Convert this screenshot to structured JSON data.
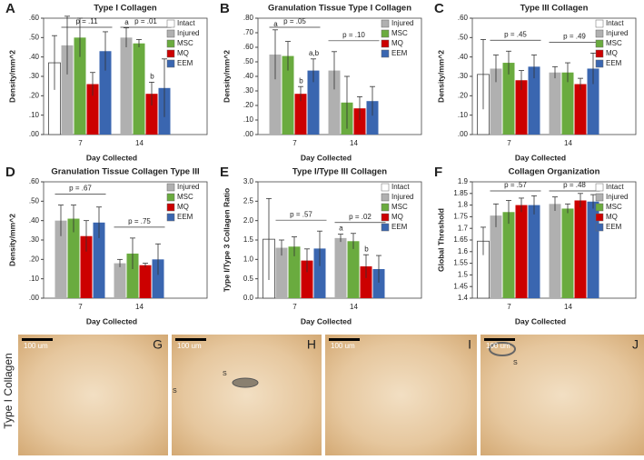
{
  "chart_data": [
    {
      "type": "bar",
      "panel": "A",
      "title": "Type I Collagen",
      "y_label": "Density/mm^2",
      "x_label": "Day Collected",
      "categories": [
        "7",
        "14"
      ],
      "pvalues": [
        "p = .11",
        "p = .01"
      ],
      "ylim": [
        0,
        0.6
      ],
      "yticks": [
        {
          "value": 0,
          "label": ".00"
        },
        {
          "value": 0.1,
          "label": ".10"
        },
        {
          "value": 0.2,
          "label": ".20"
        },
        {
          "value": 0.3,
          "label": ".30"
        },
        {
          "value": 0.4,
          "label": ".40"
        },
        {
          "value": 0.5,
          "label": ".50"
        },
        {
          "value": 0.6,
          "label": ".60"
        }
      ],
      "series": [
        {
          "name": "Intact",
          "color": "#ffffff",
          "values": [
            0.37,
            null
          ],
          "errors": [
            0.14,
            null
          ]
        },
        {
          "name": "Injured",
          "color": "#b0b0b0",
          "values": [
            0.46,
            0.5
          ],
          "errors": [
            0.15,
            0.05
          ],
          "letters": [
            null,
            "a"
          ]
        },
        {
          "name": "MSC",
          "color": "#6aab3f",
          "values": [
            0.5,
            0.47
          ],
          "errors": [
            0.1,
            0.02
          ]
        },
        {
          "name": "MQ",
          "color": "#cc0000",
          "values": [
            0.26,
            0.21
          ],
          "errors": [
            0.06,
            0.06
          ],
          "letters": [
            null,
            "b"
          ]
        },
        {
          "name": "EEM",
          "color": "#3a66b0",
          "values": [
            0.43,
            0.24
          ],
          "errors": [
            0.1,
            0.15
          ]
        }
      ]
    },
    {
      "type": "bar",
      "panel": "B",
      "title": "Granulation Tissue Type I Collagen",
      "y_label": "Density/mm^2",
      "x_label": "Day Collected",
      "categories": [
        "7",
        "14"
      ],
      "pvalues": [
        "p = .05",
        "p = .10"
      ],
      "ylim": [
        0,
        0.8
      ],
      "yticks": [
        {
          "value": 0,
          "label": ".00"
        },
        {
          "value": 0.1,
          "label": ".10"
        },
        {
          "value": 0.2,
          "label": ".20"
        },
        {
          "value": 0.3,
          "label": ".30"
        },
        {
          "value": 0.4,
          "label": ".40"
        },
        {
          "value": 0.5,
          "label": ".50"
        },
        {
          "value": 0.6,
          "label": ".60"
        },
        {
          "value": 0.7,
          "label": ".70"
        },
        {
          "value": 0.8,
          "label": ".80"
        }
      ],
      "series": [
        {
          "name": "Injured",
          "color": "#b0b0b0",
          "values": [
            0.55,
            0.44
          ],
          "errors": [
            0.17,
            0.13
          ],
          "letters": [
            "a",
            null
          ]
        },
        {
          "name": "MSC",
          "color": "#6aab3f",
          "values": [
            0.54,
            0.22
          ],
          "errors": [
            0.1,
            0.18
          ]
        },
        {
          "name": "MQ",
          "color": "#cc0000",
          "values": [
            0.28,
            0.18
          ],
          "errors": [
            0.05,
            0.08
          ],
          "letters": [
            "b",
            null
          ]
        },
        {
          "name": "EEM",
          "color": "#3a66b0",
          "values": [
            0.44,
            0.23
          ],
          "errors": [
            0.08,
            0.1
          ],
          "letters": [
            "a,b",
            null
          ]
        }
      ]
    },
    {
      "type": "bar",
      "panel": "C",
      "title": "Type III Collagen",
      "y_label": "Density/mm^2",
      "x_label": "Day Collected",
      "categories": [
        "7",
        "14"
      ],
      "pvalues": [
        "p = .45",
        "p = .49"
      ],
      "ylim": [
        0,
        0.6
      ],
      "yticks": [
        {
          "value": 0,
          "label": ".00"
        },
        {
          "value": 0.1,
          "label": ".10"
        },
        {
          "value": 0.2,
          "label": ".20"
        },
        {
          "value": 0.3,
          "label": ".30"
        },
        {
          "value": 0.4,
          "label": ".40"
        },
        {
          "value": 0.5,
          "label": ".50"
        },
        {
          "value": 0.6,
          "label": ".60"
        }
      ],
      "series": [
        {
          "name": "Intact",
          "color": "#ffffff",
          "values": [
            0.31,
            null
          ],
          "errors": [
            0.18,
            null
          ]
        },
        {
          "name": "Injured",
          "color": "#b0b0b0",
          "values": [
            0.34,
            0.32
          ],
          "errors": [
            0.07,
            0.03
          ]
        },
        {
          "name": "MSC",
          "color": "#6aab3f",
          "values": [
            0.37,
            0.32
          ],
          "errors": [
            0.06,
            0.05
          ]
        },
        {
          "name": "MQ",
          "color": "#cc0000",
          "values": [
            0.28,
            0.26
          ],
          "errors": [
            0.05,
            0.03
          ]
        },
        {
          "name": "EEM",
          "color": "#3a66b0",
          "values": [
            0.35,
            0.34
          ],
          "errors": [
            0.06,
            0.08
          ]
        }
      ]
    },
    {
      "type": "bar",
      "panel": "D",
      "title": "Granulation Tissue Collagen Type III",
      "y_label": "Density/mm^2",
      "x_label": "Day Collected",
      "categories": [
        "7",
        "14"
      ],
      "pvalues": [
        "p = .67",
        "p = .75"
      ],
      "ylim": [
        0,
        0.6
      ],
      "yticks": [
        {
          "value": 0,
          "label": ".00"
        },
        {
          "value": 0.1,
          "label": ".10"
        },
        {
          "value": 0.2,
          "label": ".20"
        },
        {
          "value": 0.3,
          "label": ".30"
        },
        {
          "value": 0.4,
          "label": ".40"
        },
        {
          "value": 0.5,
          "label": ".50"
        },
        {
          "value": 0.6,
          "label": ".60"
        }
      ],
      "series": [
        {
          "name": "Injured",
          "color": "#b0b0b0",
          "values": [
            0.4,
            0.18
          ],
          "errors": [
            0.08,
            0.02
          ]
        },
        {
          "name": "MSC",
          "color": "#6aab3f",
          "values": [
            0.41,
            0.23
          ],
          "errors": [
            0.07,
            0.08
          ]
        },
        {
          "name": "MQ",
          "color": "#cc0000",
          "values": [
            0.32,
            0.17
          ],
          "errors": [
            0.08,
            0.01
          ]
        },
        {
          "name": "EEM",
          "color": "#3a66b0",
          "values": [
            0.39,
            0.2
          ],
          "errors": [
            0.08,
            0.08
          ]
        }
      ]
    },
    {
      "type": "bar",
      "panel": "E",
      "title": "Type I/Type III Collagen",
      "y_label": "Type I/Type 3 Collagen Ratio",
      "x_label": "Day Collected",
      "categories": [
        "7",
        "14"
      ],
      "pvalues": [
        "p = .57",
        "p = .02"
      ],
      "ylim": [
        0,
        3
      ],
      "yticks": [
        {
          "value": 0,
          "label": "0.0"
        },
        0.5,
        {
          "value": 1,
          "label": "1.0"
        },
        1.5,
        {
          "value": 2,
          "label": "2.0"
        },
        2.5,
        {
          "value": 3,
          "label": "3.0"
        }
      ],
      "series": [
        {
          "name": "Intact",
          "color": "#ffffff",
          "values": [
            1.52,
            null
          ],
          "errors": [
            1.05,
            null
          ]
        },
        {
          "name": "Injured",
          "color": "#b0b0b0",
          "values": [
            1.3,
            1.55
          ],
          "errors": [
            0.2,
            0.1
          ],
          "letters": [
            null,
            "a"
          ]
        },
        {
          "name": "MSC",
          "color": "#6aab3f",
          "values": [
            1.33,
            1.47
          ],
          "errors": [
            0.25,
            0.2
          ]
        },
        {
          "name": "MQ",
          "color": "#cc0000",
          "values": [
            0.97,
            0.82
          ],
          "errors": [
            0.3,
            0.3
          ],
          "letters": [
            null,
            "b"
          ]
        },
        {
          "name": "EEM",
          "color": "#3a66b0",
          "values": [
            1.28,
            0.75
          ],
          "errors": [
            0.45,
            0.35
          ]
        }
      ]
    },
    {
      "type": "bar",
      "panel": "F",
      "title": "Collagen Organization",
      "y_label": "Global Threshold",
      "x_label": "Day Collected",
      "categories": [
        "7",
        "14"
      ],
      "pvalues": [
        "p = .57",
        "p = .48"
      ],
      "ylim": [
        1.4,
        1.9
      ],
      "yticks": [
        1.4,
        1.45,
        1.5,
        1.55,
        1.6,
        1.65,
        1.7,
        1.75,
        1.8,
        1.85,
        1.9
      ],
      "series": [
        {
          "name": "Intact",
          "color": "#ffffff",
          "values": [
            1.645,
            null
          ],
          "errors": [
            0.06,
            null
          ]
        },
        {
          "name": "Injured",
          "color": "#b0b0b0",
          "values": [
            1.755,
            1.805
          ],
          "errors": [
            0.05,
            0.03
          ]
        },
        {
          "name": "MSC",
          "color": "#6aab3f",
          "values": [
            1.77,
            1.785
          ],
          "errors": [
            0.05,
            0.02
          ]
        },
        {
          "name": "MQ",
          "color": "#cc0000",
          "values": [
            1.8,
            1.82
          ],
          "errors": [
            0.03,
            0.03
          ]
        },
        {
          "name": "EEM",
          "color": "#3a66b0",
          "values": [
            1.8,
            1.815
          ],
          "errors": [
            0.04,
            0.03
          ]
        }
      ]
    }
  ],
  "micrographs": {
    "side_label": "Type I Collagen",
    "panels": [
      {
        "letter": "G",
        "scale": "100 um"
      },
      {
        "letter": "H",
        "scale": "100 um",
        "marks": [
          "S",
          "S"
        ]
      },
      {
        "letter": "I",
        "scale": "100 um"
      },
      {
        "letter": "J",
        "scale": "100 um",
        "marks": [
          "S"
        ]
      }
    ]
  }
}
